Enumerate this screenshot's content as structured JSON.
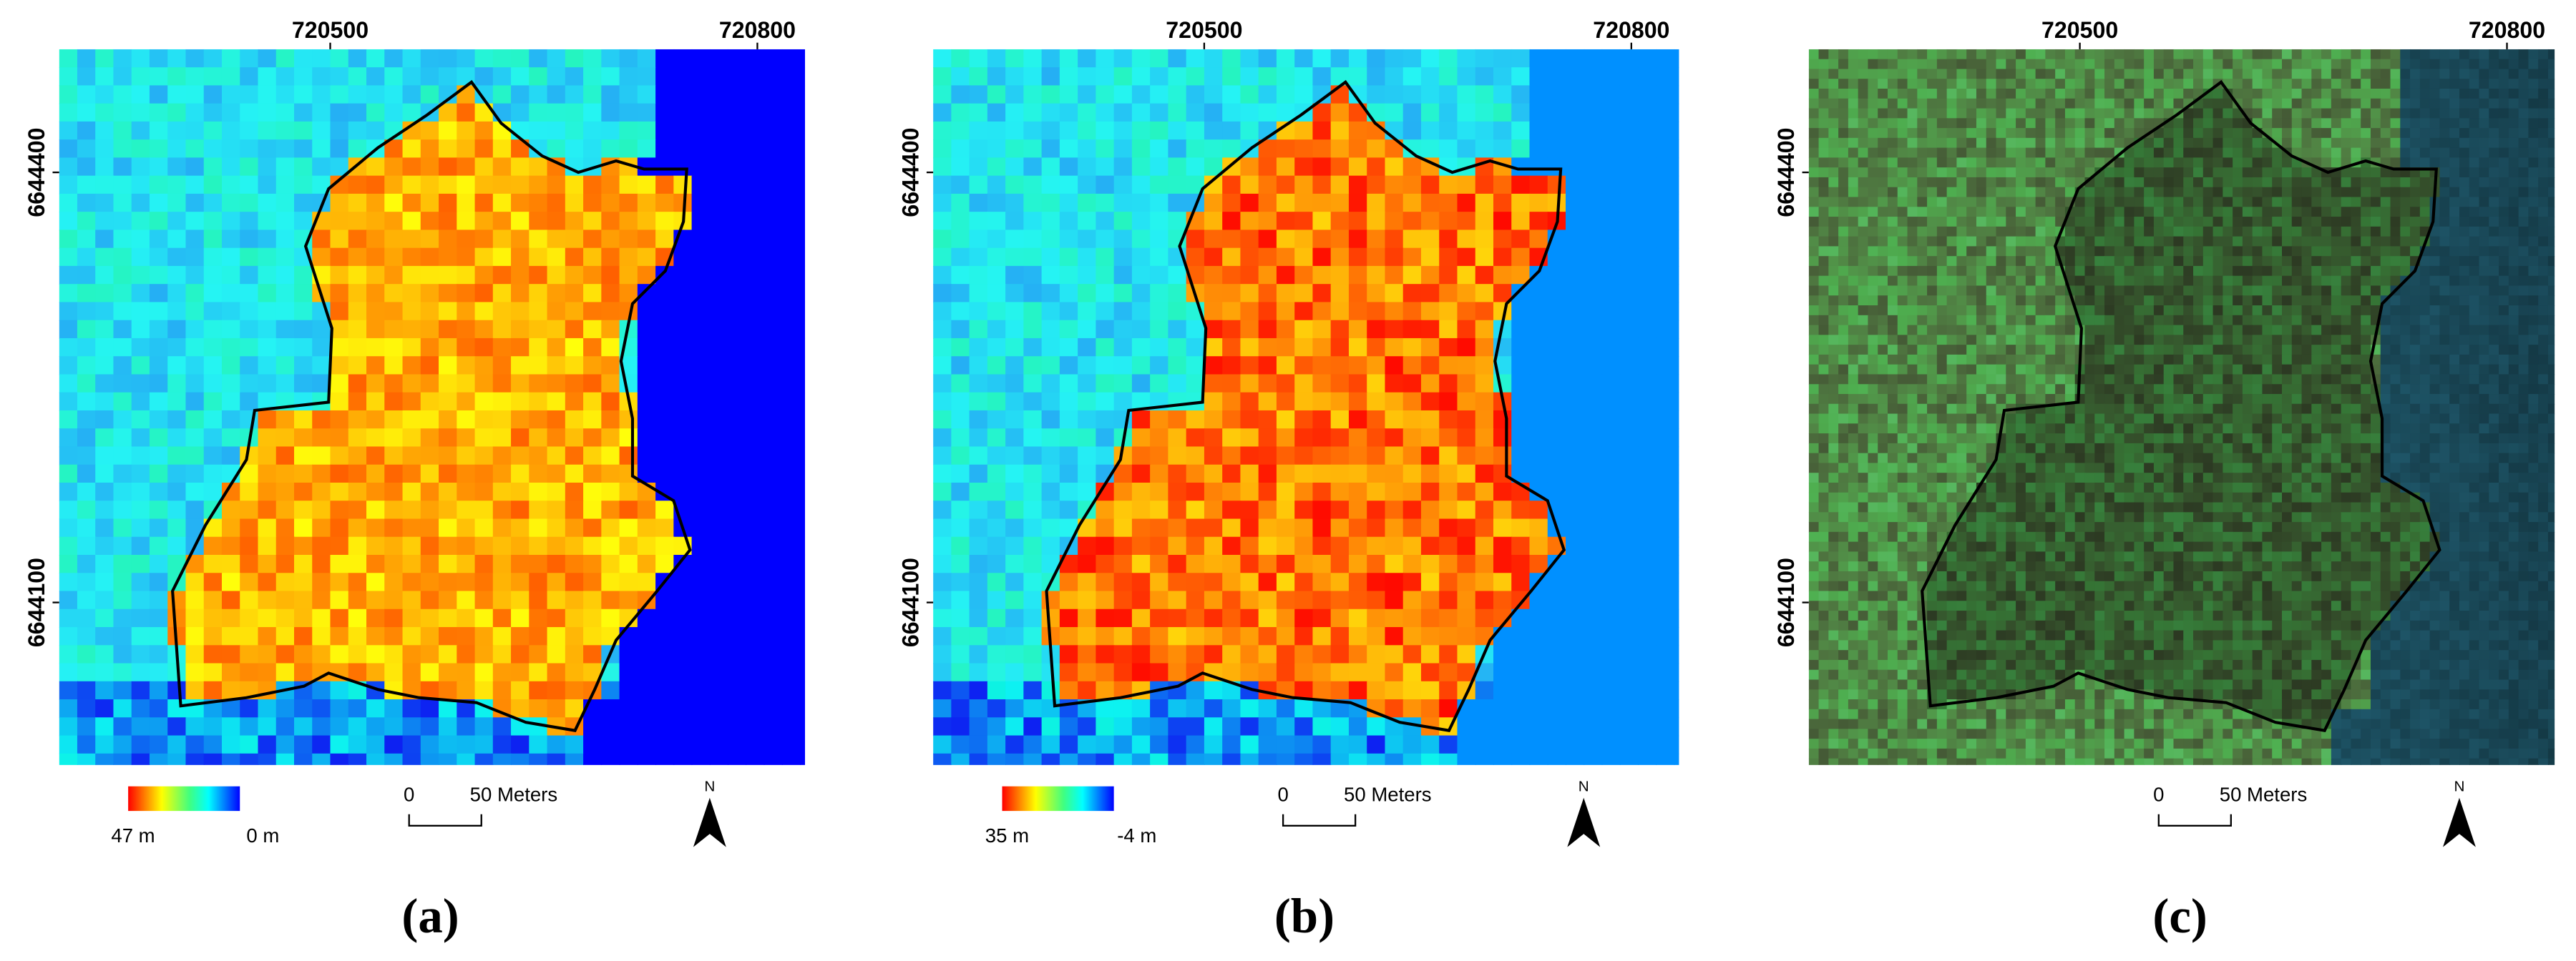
{
  "panels": [
    {
      "label": "(a)",
      "x_ticks": [
        "720500",
        "720800"
      ],
      "y_ticks": [
        "6644400",
        "6644100"
      ],
      "legend": {
        "high": "47 m",
        "low": "0 m"
      },
      "scale_bar": {
        "zero": "0",
        "label": "50 Meters"
      },
      "north": "N"
    },
    {
      "label": "(b)",
      "x_ticks": [
        "720500",
        "720800"
      ],
      "y_ticks": [
        "6644400",
        "6644100"
      ],
      "legend": {
        "high": "35 m",
        "low": "-4 m"
      },
      "scale_bar": {
        "zero": "0",
        "label": "50 Meters"
      },
      "north": "N"
    },
    {
      "label": "(c)",
      "x_ticks": [
        "720500",
        "720800"
      ],
      "y_ticks": [
        "6644400",
        "6644100"
      ],
      "scale_bar": {
        "zero": "0",
        "label": "50 Meters"
      },
      "north": "N"
    }
  ]
}
